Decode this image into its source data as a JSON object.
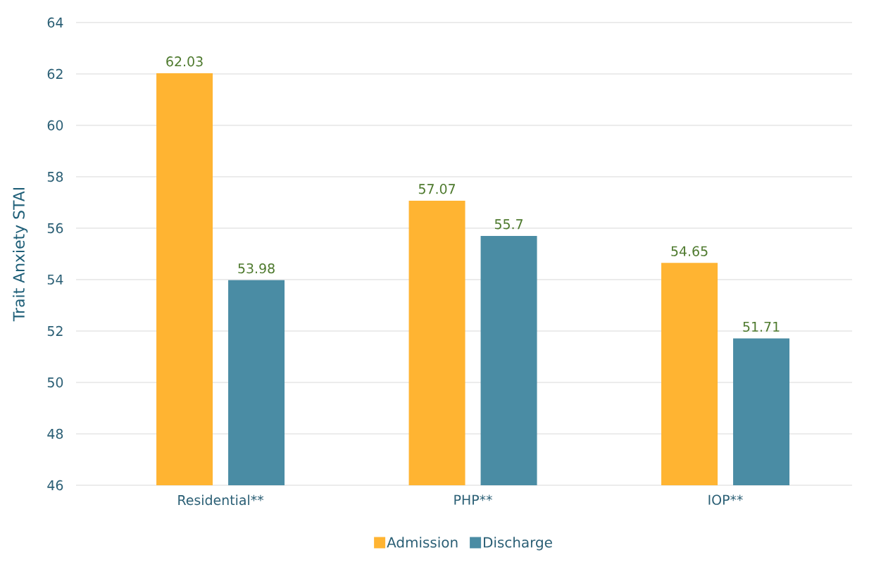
{
  "chart_data": {
    "type": "bar",
    "ylabel": "Trait  Anxiety STAI",
    "categories": [
      "Residential**",
      "PHP**",
      "IOP**"
    ],
    "series": [
      {
        "name": "Admission",
        "color": "#ffb432",
        "values": [
          62.03,
          57.07,
          54.65
        ]
      },
      {
        "name": "Discharge",
        "color": "#4a8ca4",
        "values": [
          53.98,
          55.7,
          51.71
        ]
      }
    ],
    "ylim": [
      46,
      64
    ],
    "yticks": [
      46,
      48,
      50,
      52,
      54,
      56,
      58,
      60,
      62,
      64
    ],
    "grid": "y",
    "legend": "bottom",
    "data_labels": true
  }
}
